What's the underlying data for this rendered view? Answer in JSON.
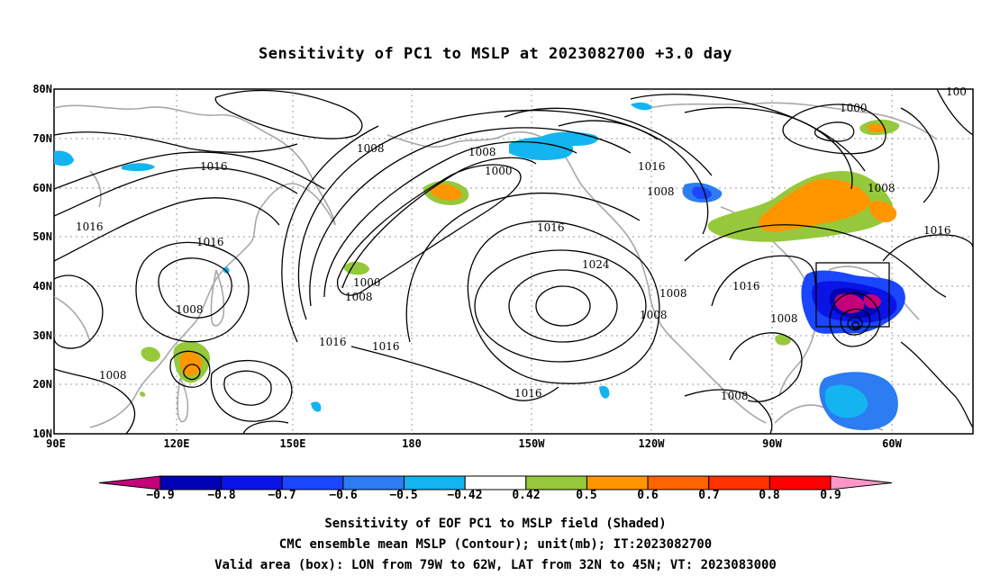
{
  "title": "Sensitivity of PC1 to MSLP at 2023082700 +3.0 day",
  "lat_labels": [
    "80N",
    "70N",
    "60N",
    "50N",
    "40N",
    "30N",
    "20N",
    "10N"
  ],
  "lon_labels": [
    "90E",
    "120E",
    "150E",
    "180",
    "150W",
    "120W",
    "90W",
    "60W"
  ],
  "contour_labels": {
    "c1000_nw": "1000",
    "c1000_top": "1000",
    "c1000_mid": "1000",
    "c1008_a": "1008",
    "c1008_b": "1008",
    "c1008_c": "1008",
    "c1008_d": "1008",
    "c1008_e": "1008",
    "c1008_f": "1008",
    "c1008_g": "1008",
    "c1008_h": "1008",
    "c1008_i": "1008",
    "c1008_j": "1008",
    "c1008_k": "1008",
    "c1016_a": "1016",
    "c1016_b": "1016",
    "c1016_c": "1016",
    "c1016_d": "1016",
    "c1016_e": "1016",
    "c1016_f": "1016",
    "c1016_g": "1016",
    "c1016_h": "1016",
    "c1016_i": "1016",
    "c1024": "1024",
    "c100_edge": "100"
  },
  "colorbar": {
    "labels": [
      "−0.9",
      "−0.8",
      "−0.7",
      "−0.6",
      "−0.5",
      "−0.42",
      "0.42",
      "0.5",
      "0.6",
      "0.7",
      "0.8",
      "0.9"
    ],
    "colors": [
      "#c4007a",
      "#0000b4",
      "#0a14e6",
      "#1a46ff",
      "#2c7cf2",
      "#14b4f0",
      "#ffffff",
      "#96c83c",
      "#ff9600",
      "#ff6400",
      "#ff3200",
      "#ff0000",
      "#ff96c8"
    ]
  },
  "footer": {
    "line1": "Sensitivity of EOF PC1 to MSLP field (Shaded)",
    "line2": "CMC ensemble mean MSLP (Contour); unit(mb); IT:2023082700",
    "line3": "Valid area (box): LON from 79W to 62W, LAT from 32N to 45N; VT: 2023083000"
  }
}
